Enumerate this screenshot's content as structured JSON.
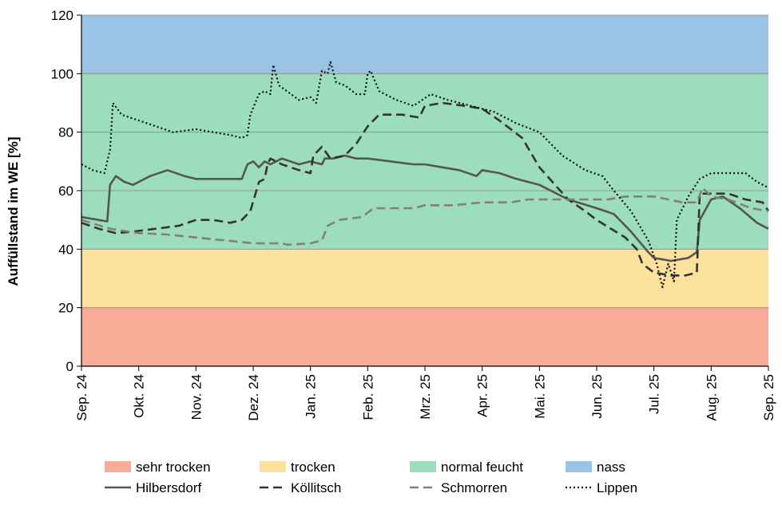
{
  "chart_data": {
    "type": "line",
    "ylabel": "Auffüllstand im WE [%]",
    "ylim": [
      0,
      120
    ],
    "yticks": [
      "0",
      "20",
      "40",
      "60",
      "80",
      "100",
      "120"
    ],
    "x_tick_labels": [
      "Sep. 24",
      "Okt. 24",
      "Nov. 24",
      "Dez. 24",
      "Jan. 25",
      "Feb. 25",
      "Mrz. 25",
      "Apr. 25",
      "Mai. 25",
      "Jun. 25",
      "Jul. 25",
      "Aug. 25",
      "Sep. 25"
    ],
    "bands": [
      {
        "name": "sehr trocken",
        "from": 0,
        "to": 20,
        "color": "#f8ac98"
      },
      {
        "name": "trocken",
        "from": 20,
        "to": 40,
        "color": "#fbe19c"
      },
      {
        "name": "normal feucht",
        "from": 40,
        "to": 100,
        "color": "#9cddbb"
      },
      {
        "name": "nass",
        "from": 100,
        "to": 120,
        "color": "#9ac3e4"
      }
    ],
    "series": [
      {
        "name": "Hilbersdorf",
        "style": "solid",
        "color": "#555555",
        "points": [
          [
            0,
            51
          ],
          [
            0.3,
            50
          ],
          [
            0.45,
            49.5
          ],
          [
            0.5,
            62
          ],
          [
            0.6,
            65
          ],
          [
            0.75,
            63
          ],
          [
            0.9,
            62
          ],
          [
            1.0,
            63
          ],
          [
            1.2,
            65
          ],
          [
            1.5,
            67
          ],
          [
            1.8,
            65
          ],
          [
            2.0,
            64
          ],
          [
            2.8,
            64
          ],
          [
            2.9,
            69
          ],
          [
            3.0,
            70
          ],
          [
            3.1,
            68
          ],
          [
            3.2,
            70
          ],
          [
            3.3,
            69
          ],
          [
            3.5,
            71
          ],
          [
            3.8,
            69
          ],
          [
            4.0,
            70
          ],
          [
            4.2,
            69
          ],
          [
            4.25,
            71
          ],
          [
            4.4,
            71
          ],
          [
            4.6,
            72
          ],
          [
            4.8,
            71
          ],
          [
            5.0,
            71
          ],
          [
            5.4,
            70
          ],
          [
            5.8,
            69
          ],
          [
            6.0,
            69
          ],
          [
            6.3,
            68
          ],
          [
            6.6,
            67
          ],
          [
            6.9,
            65
          ],
          [
            7.0,
            67
          ],
          [
            7.3,
            66
          ],
          [
            7.6,
            64
          ],
          [
            8.0,
            62
          ],
          [
            8.5,
            57
          ],
          [
            9.0,
            54
          ],
          [
            9.3,
            52
          ],
          [
            9.6,
            46
          ],
          [
            9.9,
            39
          ],
          [
            10.0,
            37
          ],
          [
            10.3,
            36
          ],
          [
            10.6,
            37
          ],
          [
            10.75,
            39
          ],
          [
            10.8,
            50
          ],
          [
            11.0,
            57
          ],
          [
            11.2,
            58
          ],
          [
            11.5,
            54
          ],
          [
            11.8,
            49
          ],
          [
            12.0,
            47
          ]
        ]
      },
      {
        "name": "Köllitsch",
        "style": "dashed",
        "color": "#333333",
        "points": [
          [
            0,
            49
          ],
          [
            0.3,
            47
          ],
          [
            0.6,
            45.5
          ],
          [
            0.9,
            46
          ],
          [
            1.3,
            47
          ],
          [
            1.7,
            48
          ],
          [
            2.0,
            50
          ],
          [
            2.3,
            50
          ],
          [
            2.6,
            49
          ],
          [
            2.8,
            50
          ],
          [
            2.95,
            53
          ],
          [
            3.1,
            63
          ],
          [
            3.2,
            64
          ],
          [
            3.25,
            69
          ],
          [
            3.3,
            71
          ],
          [
            3.5,
            69
          ],
          [
            3.8,
            67
          ],
          [
            4.0,
            66
          ],
          [
            4.05,
            72
          ],
          [
            4.2,
            75
          ],
          [
            4.35,
            71
          ],
          [
            4.6,
            72
          ],
          [
            4.8,
            76
          ],
          [
            5.0,
            82
          ],
          [
            5.2,
            86
          ],
          [
            5.6,
            86
          ],
          [
            5.9,
            85
          ],
          [
            6.0,
            89
          ],
          [
            6.3,
            90
          ],
          [
            6.7,
            89
          ],
          [
            7.0,
            88
          ],
          [
            7.3,
            84
          ],
          [
            7.7,
            78
          ],
          [
            8.0,
            68
          ],
          [
            8.5,
            57
          ],
          [
            8.8,
            53
          ],
          [
            9.0,
            50
          ],
          [
            9.5,
            44
          ],
          [
            9.7,
            40
          ],
          [
            9.8,
            35
          ],
          [
            10.0,
            32
          ],
          [
            10.3,
            31
          ],
          [
            10.55,
            31
          ],
          [
            10.75,
            32
          ],
          [
            10.8,
            59
          ],
          [
            11.0,
            59
          ],
          [
            11.3,
            59
          ],
          [
            11.6,
            57
          ],
          [
            11.9,
            56
          ],
          [
            12.0,
            53
          ]
        ]
      },
      {
        "name": "Schmorren",
        "style": "dashed",
        "color": "#808080",
        "points": [
          [
            0,
            50
          ],
          [
            0.5,
            47
          ],
          [
            1.0,
            45.5
          ],
          [
            1.5,
            45
          ],
          [
            2.0,
            44
          ],
          [
            2.5,
            43
          ],
          [
            3.0,
            42
          ],
          [
            3.5,
            42
          ],
          [
            3.6,
            41.5
          ],
          [
            4.0,
            42
          ],
          [
            4.2,
            43
          ],
          [
            4.3,
            48
          ],
          [
            4.5,
            50
          ],
          [
            4.9,
            51
          ],
          [
            5.1,
            54
          ],
          [
            5.5,
            54
          ],
          [
            5.8,
            54
          ],
          [
            6.0,
            55
          ],
          [
            6.5,
            55
          ],
          [
            7.0,
            56
          ],
          [
            7.5,
            56
          ],
          [
            7.8,
            57
          ],
          [
            8.3,
            57
          ],
          [
            8.8,
            57
          ],
          [
            9.2,
            57
          ],
          [
            9.5,
            58
          ],
          [
            10.0,
            58
          ],
          [
            10.5,
            56
          ],
          [
            10.75,
            56
          ],
          [
            10.85,
            61
          ],
          [
            11.0,
            58
          ],
          [
            11.3,
            57
          ],
          [
            11.7,
            54
          ],
          [
            12.0,
            53
          ]
        ]
      },
      {
        "name": "Lippen",
        "style": "dotted",
        "color": "#111111",
        "points": [
          [
            0,
            69
          ],
          [
            0.2,
            67
          ],
          [
            0.4,
            66
          ],
          [
            0.5,
            74
          ],
          [
            0.55,
            90
          ],
          [
            0.7,
            86
          ],
          [
            1.0,
            84
          ],
          [
            1.3,
            82
          ],
          [
            1.6,
            80
          ],
          [
            2.0,
            81
          ],
          [
            2.3,
            80
          ],
          [
            2.6,
            79
          ],
          [
            2.8,
            78
          ],
          [
            2.9,
            79
          ],
          [
            2.95,
            86
          ],
          [
            3.1,
            93
          ],
          [
            3.2,
            94
          ],
          [
            3.3,
            93
          ],
          [
            3.35,
            103
          ],
          [
            3.45,
            96
          ],
          [
            3.8,
            91
          ],
          [
            4.0,
            92
          ],
          [
            4.1,
            90
          ],
          [
            4.2,
            101
          ],
          [
            4.3,
            100
          ],
          [
            4.35,
            104
          ],
          [
            4.45,
            97
          ],
          [
            4.6,
            96
          ],
          [
            4.8,
            93
          ],
          [
            4.95,
            93
          ],
          [
            5.0,
            100
          ],
          [
            5.05,
            101
          ],
          [
            5.2,
            94
          ],
          [
            5.5,
            91
          ],
          [
            5.8,
            89
          ],
          [
            6.1,
            93
          ],
          [
            6.4,
            91
          ],
          [
            6.8,
            89
          ],
          [
            7.2,
            87
          ],
          [
            7.6,
            83
          ],
          [
            8.0,
            80
          ],
          [
            8.4,
            72
          ],
          [
            8.8,
            67
          ],
          [
            9.1,
            65
          ],
          [
            9.3,
            60
          ],
          [
            9.6,
            53
          ],
          [
            9.9,
            43
          ],
          [
            10.05,
            35
          ],
          [
            10.15,
            27
          ],
          [
            10.25,
            35
          ],
          [
            10.35,
            29
          ],
          [
            10.4,
            50
          ],
          [
            10.6,
            58
          ],
          [
            10.8,
            64
          ],
          [
            11.0,
            66
          ],
          [
            11.6,
            66
          ],
          [
            11.8,
            63
          ],
          [
            12.0,
            61
          ]
        ]
      }
    ]
  }
}
